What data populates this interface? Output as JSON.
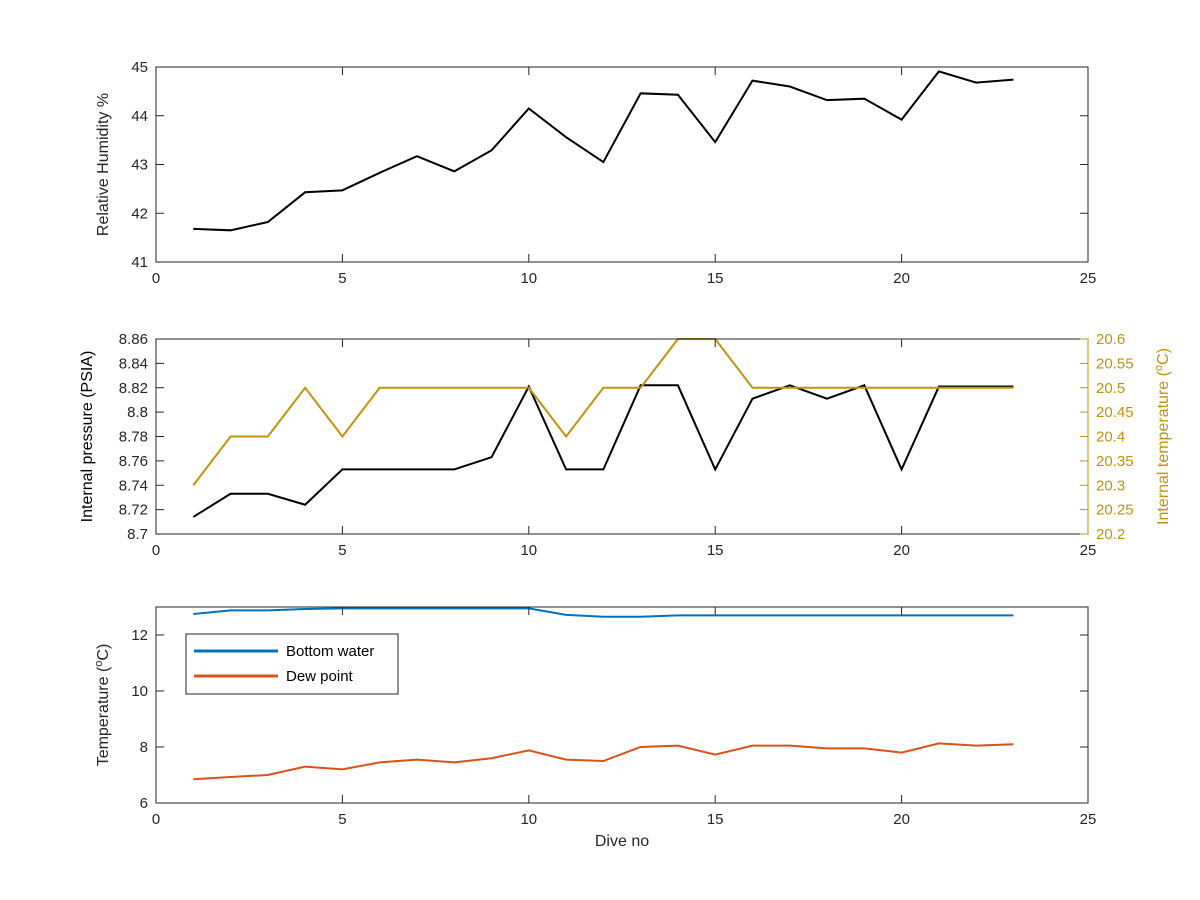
{
  "figure": {
    "background": "#ffffff",
    "axis_color": "#262626"
  },
  "chart_data": [
    {
      "type": "line",
      "xlabel": "",
      "ylabel": "Relative Humidity %",
      "xlim": [
        0,
        25
      ],
      "ylim": [
        41,
        45
      ],
      "xticks": [
        0,
        5,
        10,
        15,
        20,
        25
      ],
      "yticks": [
        41,
        42,
        43,
        44,
        45
      ],
      "grid": false,
      "series": [
        {
          "color": "#000000",
          "x": [
            1,
            2,
            3,
            4,
            5,
            6,
            7,
            8,
            9,
            10,
            11,
            12,
            13,
            14,
            15,
            16,
            17,
            18,
            19,
            20,
            21,
            22,
            23
          ],
          "y": [
            41.68,
            41.65,
            41.82,
            42.43,
            42.47,
            42.83,
            43.17,
            42.86,
            43.29,
            44.15,
            43.56,
            43.05,
            44.46,
            44.43,
            43.46,
            44.72,
            44.6,
            44.32,
            44.35,
            43.92,
            44.91,
            44.68,
            44.74
          ]
        }
      ]
    },
    {
      "type": "line",
      "xlabel": "",
      "ylabel": "Internal pressure (PSIA)",
      "ylabel_right": "Internal temperature (°C)",
      "right_axis_color": "#c1930e",
      "xlim": [
        0,
        25
      ],
      "ylim": [
        8.7,
        8.86
      ],
      "ylim_right": [
        20.2,
        20.6
      ],
      "xticks": [
        0,
        5,
        10,
        15,
        20,
        25
      ],
      "yticks": [
        8.7,
        8.72,
        8.74,
        8.76,
        8.78,
        8.8,
        8.82,
        8.84,
        8.86
      ],
      "ytick_labels": [
        "8.7",
        "8.72",
        "8.74",
        "8.76",
        "8.78",
        "8.8",
        "8.82",
        "8.84",
        "8.86"
      ],
      "yticks_right": [
        20.2,
        20.25,
        20.3,
        20.35,
        20.4,
        20.45,
        20.5,
        20.55,
        20.6
      ],
      "ytick_labels_right": [
        "20.2",
        "20.25",
        "20.3",
        "20.35",
        "20.4",
        "20.45",
        "20.5",
        "20.55",
        "20.6"
      ],
      "grid": false,
      "series": [
        {
          "axis": "left",
          "color": "#000000",
          "x": [
            1,
            2,
            3,
            4,
            5,
            6,
            7,
            8,
            9,
            10,
            11,
            12,
            13,
            14,
            15,
            16,
            17,
            18,
            19,
            20,
            21,
            22,
            23
          ],
          "y": [
            8.714,
            8.733,
            8.733,
            8.724,
            8.753,
            8.753,
            8.753,
            8.753,
            8.763,
            8.821,
            8.753,
            8.753,
            8.822,
            8.822,
            8.753,
            8.811,
            8.822,
            8.811,
            8.822,
            8.753,
            8.821,
            8.821,
            8.821
          ]
        },
        {
          "axis": "right",
          "color": "#c1930e",
          "x": [
            1,
            2,
            3,
            4,
            5,
            6,
            7,
            8,
            9,
            10,
            11,
            12,
            13,
            14,
            15,
            16,
            17,
            18,
            19,
            20,
            21,
            22,
            23
          ],
          "y": [
            20.3,
            20.4,
            20.4,
            20.5,
            20.4,
            20.5,
            20.5,
            20.5,
            20.5,
            20.5,
            20.4,
            20.5,
            20.5,
            20.6,
            20.6,
            20.5,
            20.5,
            20.5,
            20.5,
            20.5,
            20.5,
            20.5,
            20.5
          ]
        }
      ]
    },
    {
      "type": "line",
      "xlabel": "Dive no",
      "ylabel": "Temperature (°C)",
      "xlim": [
        0,
        25
      ],
      "ylim": [
        6,
        13
      ],
      "xticks": [
        0,
        5,
        10,
        15,
        20,
        25
      ],
      "yticks": [
        6,
        8,
        10,
        12
      ],
      "grid": false,
      "legend": "top-left",
      "series": [
        {
          "name": "Bottom water",
          "color": "#0072bd",
          "x": [
            1,
            2,
            3,
            4,
            5,
            6,
            7,
            8,
            9,
            10,
            11,
            12,
            13,
            14,
            15,
            16,
            17,
            18,
            19,
            20,
            21,
            22,
            23
          ],
          "y": [
            12.75,
            12.88,
            12.88,
            12.93,
            12.95,
            12.95,
            12.95,
            12.95,
            12.95,
            12.95,
            12.72,
            12.65,
            12.65,
            12.7,
            12.7,
            12.7,
            12.7,
            12.7,
            12.7,
            12.7,
            12.7,
            12.7,
            12.7
          ]
        },
        {
          "name": "Dew point",
          "color": "#d95319",
          "x": [
            1,
            2,
            3,
            4,
            5,
            6,
            7,
            8,
            9,
            10,
            11,
            12,
            13,
            14,
            15,
            16,
            17,
            18,
            19,
            20,
            21,
            22,
            23
          ],
          "y": [
            6.85,
            6.93,
            7.0,
            7.3,
            7.2,
            7.45,
            7.55,
            7.45,
            7.6,
            7.88,
            7.55,
            7.5,
            8.0,
            8.05,
            7.73,
            8.05,
            8.05,
            7.95,
            7.95,
            7.8,
            8.13,
            8.05,
            8.1
          ]
        }
      ]
    }
  ]
}
